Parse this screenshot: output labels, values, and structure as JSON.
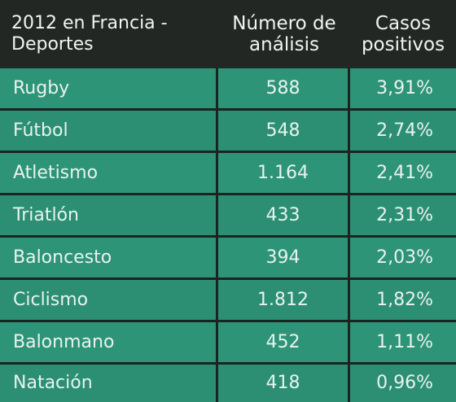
{
  "table": {
    "headers": {
      "col1_line1": "2012 en Francia -",
      "col1_line2": "Deportes",
      "col2_line1": "Número de",
      "col2_line2": "análisis",
      "col3_line1": "Casos",
      "col3_line2": "positivos"
    },
    "rows": [
      {
        "sport": "Rugby",
        "analyses": "588",
        "positive": "3,91%"
      },
      {
        "sport": "Fútbol",
        "analyses": "548",
        "positive": "2,74%"
      },
      {
        "sport": "Atletismo",
        "analyses": "1.164",
        "positive": "2,41%"
      },
      {
        "sport": "Triatlón",
        "analyses": "433",
        "positive": "2,31%"
      },
      {
        "sport": "Baloncesto",
        "analyses": "394",
        "positive": "2,03%"
      },
      {
        "sport": "Ciclismo",
        "analyses": "1.812",
        "positive": "1,82%"
      },
      {
        "sport": "Balonmano",
        "analyses": "452",
        "positive": "1,11%"
      },
      {
        "sport": "Natación",
        "analyses": "418",
        "positive": "0,96%"
      }
    ]
  }
}
